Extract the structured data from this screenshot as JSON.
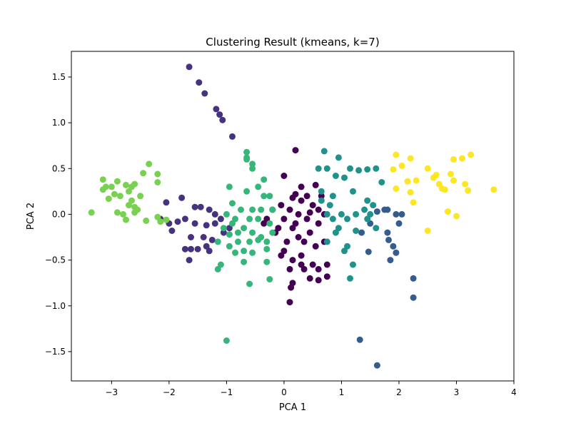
{
  "chart_data": {
    "type": "scatter",
    "title": "Clustering Result (kmeans, k=7)",
    "xlabel": "PCA 1",
    "ylabel": "PCA 2",
    "xlim": [
      -3.7,
      4.0
    ],
    "ylim": [
      -1.82,
      1.78
    ],
    "xticks": [
      -3,
      -2,
      -1,
      0,
      1,
      2,
      3,
      4
    ],
    "yticks": [
      -1.5,
      -1.0,
      -0.5,
      0.0,
      0.5,
      1.0,
      1.5
    ],
    "xtick_labels": [
      "−3",
      "−2",
      "−1",
      "0",
      "1",
      "2",
      "3",
      "4"
    ],
    "ytick_labels": [
      "−1.5",
      "−1.0",
      "−0.5",
      "0.0",
      "0.5",
      "1.0",
      "1.5"
    ],
    "grid": false,
    "legend": "none",
    "series": [
      {
        "cluster": 0,
        "color": "#440154",
        "points": [
          [
            0.2,
            0.7
          ],
          [
            0.0,
            0.42
          ],
          [
            0.3,
            0.3
          ],
          [
            0.55,
            0.32
          ],
          [
            0.4,
            0.2
          ],
          [
            0.15,
            0.18
          ],
          [
            -0.05,
            0.1
          ],
          [
            0.1,
            0.05
          ],
          [
            0.3,
            0.15
          ],
          [
            0.5,
            0.1
          ],
          [
            0.6,
            0.05
          ],
          [
            -0.2,
            0.05
          ],
          [
            -0.3,
            -0.05
          ],
          [
            0.0,
            -0.05
          ],
          [
            0.2,
            -0.1
          ],
          [
            0.4,
            -0.05
          ],
          [
            0.6,
            -0.1
          ],
          [
            0.7,
            0.0
          ],
          [
            0.45,
            -0.2
          ],
          [
            0.25,
            -0.25
          ],
          [
            0.05,
            -0.3
          ],
          [
            -0.15,
            -0.2
          ],
          [
            -0.35,
            -0.1
          ],
          [
            0.35,
            -0.3
          ],
          [
            0.55,
            -0.35
          ],
          [
            0.7,
            -0.3
          ],
          [
            0.0,
            -0.4
          ],
          [
            0.15,
            -0.5
          ],
          [
            0.3,
            -0.45
          ],
          [
            0.5,
            -0.55
          ],
          [
            0.6,
            -0.6
          ],
          [
            0.75,
            -0.55
          ],
          [
            0.35,
            -0.6
          ],
          [
            0.1,
            -0.6
          ],
          [
            0.15,
            -0.75
          ],
          [
            0.45,
            -0.7
          ],
          [
            0.75,
            -0.68
          ],
          [
            0.6,
            -0.72
          ],
          [
            0.12,
            -0.8
          ],
          [
            0.1,
            -0.96
          ],
          [
            0.25,
            0.0
          ],
          [
            -0.1,
            -0.15
          ],
          [
            0.65,
            0.2
          ],
          [
            0.2,
            0.22
          ],
          [
            0.45,
            0.02
          ],
          [
            0.15,
            -0.15
          ],
          [
            -0.05,
            -0.45
          ],
          [
            0.3,
            -0.55
          ]
        ]
      },
      {
        "cluster": 1,
        "color": "#46327e",
        "points": [
          [
            -1.65,
            1.61
          ],
          [
            -1.48,
            1.44
          ],
          [
            -1.38,
            1.32
          ],
          [
            -1.18,
            1.15
          ],
          [
            -1.12,
            1.09
          ],
          [
            -1.07,
            1.03
          ],
          [
            -0.9,
            0.85
          ],
          [
            -2.05,
            0.13
          ],
          [
            -1.78,
            0.18
          ],
          [
            -1.45,
            0.08
          ],
          [
            -1.3,
            0.05
          ],
          [
            -1.55,
            -0.1
          ],
          [
            -1.35,
            -0.12
          ],
          [
            -1.2,
            -0.1
          ],
          [
            -1.1,
            -0.05
          ],
          [
            -0.95,
            -0.15
          ],
          [
            -2.15,
            -0.05
          ],
          [
            -2.0,
            -0.1
          ],
          [
            -1.85,
            -0.08
          ],
          [
            -1.72,
            -0.05
          ],
          [
            -1.95,
            -0.18
          ],
          [
            -1.62,
            -0.25
          ],
          [
            -1.4,
            -0.25
          ],
          [
            -1.25,
            -0.28
          ],
          [
            -1.35,
            -0.35
          ],
          [
            -1.5,
            -0.38
          ],
          [
            -1.62,
            -0.38
          ],
          [
            -1.72,
            -0.38
          ],
          [
            -1.65,
            -0.5
          ],
          [
            -1.3,
            -0.4
          ],
          [
            -1.05,
            -0.2
          ],
          [
            -1.55,
            0.08
          ],
          [
            -1.2,
            0.0
          ]
        ]
      },
      {
        "cluster": 2,
        "color": "#365c8d",
        "points": [
          [
            1.35,
            -0.2
          ],
          [
            1.5,
            -0.1
          ],
          [
            1.62,
            0.03
          ],
          [
            1.75,
            0.05
          ],
          [
            1.8,
            0.05
          ],
          [
            1.95,
            0.0
          ],
          [
            2.05,
            0.0
          ],
          [
            2.0,
            -0.1
          ],
          [
            1.8,
            -0.2
          ],
          [
            1.82,
            -0.28
          ],
          [
            1.9,
            -0.35
          ],
          [
            1.95,
            -0.42
          ],
          [
            1.85,
            -0.5
          ],
          [
            1.47,
            -0.41
          ],
          [
            2.25,
            -0.7
          ],
          [
            2.25,
            -0.91
          ],
          [
            1.32,
            -1.37
          ],
          [
            1.62,
            -1.65
          ]
        ]
      },
      {
        "cluster": 3,
        "color": "#21918c",
        "points": [
          [
            0.7,
            0.69
          ],
          [
            0.95,
            0.62
          ],
          [
            1.15,
            0.5
          ],
          [
            0.75,
            0.5
          ],
          [
            0.9,
            0.42
          ],
          [
            1.05,
            0.4
          ],
          [
            1.3,
            0.48
          ],
          [
            1.45,
            0.49
          ],
          [
            1.6,
            0.5
          ],
          [
            1.7,
            0.35
          ],
          [
            1.2,
            0.25
          ],
          [
            0.85,
            0.2
          ],
          [
            0.65,
            0.15
          ],
          [
            0.75,
            0.0
          ],
          [
            0.85,
            -0.05
          ],
          [
            1.0,
            0.0
          ],
          [
            1.1,
            -0.05
          ],
          [
            1.25,
            0.0
          ],
          [
            1.4,
            0.05
          ],
          [
            1.55,
            0.1
          ],
          [
            1.5,
            0.0
          ],
          [
            1.45,
            -0.05
          ],
          [
            1.6,
            -0.15
          ],
          [
            1.25,
            -0.18
          ],
          [
            0.95,
            -0.15
          ],
          [
            0.75,
            -0.3
          ],
          [
            1.05,
            -0.4
          ],
          [
            0.9,
            -0.2
          ],
          [
            1.1,
            -0.35
          ],
          [
            1.2,
            -0.55
          ],
          [
            1.15,
            -0.7
          ],
          [
            1.45,
            0.15
          ],
          [
            0.6,
            0.5
          ],
          [
            0.65,
            0.25
          ],
          [
            0.8,
            0.1
          ]
        ]
      },
      {
        "cluster": 4,
        "color": "#35b779",
        "points": [
          [
            -0.65,
            0.68
          ],
          [
            -0.55,
            0.55
          ],
          [
            -0.35,
            0.38
          ],
          [
            -0.65,
            0.62
          ],
          [
            -0.55,
            0.5
          ],
          [
            -0.95,
            0.3
          ],
          [
            -0.65,
            0.25
          ],
          [
            -0.45,
            0.3
          ],
          [
            -0.35,
            0.2
          ],
          [
            -0.25,
            0.2
          ],
          [
            -0.9,
            0.12
          ],
          [
            -0.75,
            0.05
          ],
          [
            -0.55,
            0.05
          ],
          [
            -0.4,
            0.05
          ],
          [
            -0.2,
            0.05
          ],
          [
            -1.0,
            0.0
          ],
          [
            -0.85,
            -0.05
          ],
          [
            -0.6,
            -0.05
          ],
          [
            -0.45,
            -0.05
          ],
          [
            -0.25,
            -0.1
          ],
          [
            -1.05,
            -0.15
          ],
          [
            -0.95,
            -0.22
          ],
          [
            -0.8,
            -0.2
          ],
          [
            -0.7,
            -0.15
          ],
          [
            -0.55,
            -0.2
          ],
          [
            -0.4,
            -0.25
          ],
          [
            -0.2,
            -0.2
          ],
          [
            -1.15,
            -0.3
          ],
          [
            -0.95,
            -0.35
          ],
          [
            -0.8,
            -0.3
          ],
          [
            -0.6,
            -0.3
          ],
          [
            -0.45,
            -0.28
          ],
          [
            -0.3,
            -0.3
          ],
          [
            -0.7,
            -0.4
          ],
          [
            -0.85,
            -0.42
          ],
          [
            -0.55,
            -0.42
          ],
          [
            -0.3,
            -0.38
          ],
          [
            -1.1,
            -0.55
          ],
          [
            -1.15,
            -0.6
          ],
          [
            -0.7,
            -0.52
          ],
          [
            -0.3,
            -0.52
          ],
          [
            -0.6,
            -0.76
          ],
          [
            -0.25,
            -0.71
          ],
          [
            -1.0,
            -1.38
          ],
          [
            -0.65,
            0.6
          ],
          [
            -0.9,
            -0.1
          ]
        ]
      },
      {
        "cluster": 5,
        "color": "#7ad151",
        "points": [
          [
            -3.35,
            0.02
          ],
          [
            -3.15,
            0.38
          ],
          [
            -3.0,
            0.3
          ],
          [
            -2.9,
            0.36
          ],
          [
            -2.75,
            0.32
          ],
          [
            -2.65,
            0.3
          ],
          [
            -2.6,
            0.33
          ],
          [
            -3.1,
            0.3
          ],
          [
            -3.15,
            0.27
          ],
          [
            -2.95,
            0.22
          ],
          [
            -3.05,
            0.17
          ],
          [
            -2.85,
            0.2
          ],
          [
            -2.7,
            0.25
          ],
          [
            -2.65,
            0.15
          ],
          [
            -2.5,
            0.2
          ],
          [
            -2.6,
            0.08
          ],
          [
            -2.7,
            0.1
          ],
          [
            -2.2,
            0.44
          ],
          [
            -2.35,
            0.55
          ],
          [
            -2.45,
            0.45
          ],
          [
            -2.2,
            0.35
          ],
          [
            -2.9,
            0.02
          ],
          [
            -2.6,
            0.02
          ],
          [
            -2.55,
            0.05
          ],
          [
            -2.4,
            -0.07
          ],
          [
            -2.2,
            -0.03
          ],
          [
            -2.15,
            -0.08
          ],
          [
            -2.75,
            -0.06
          ],
          [
            -2.05,
            -0.06
          ],
          [
            -2.8,
            0.0
          ]
        ]
      },
      {
        "cluster": 6,
        "color": "#fde725",
        "points": [
          [
            1.95,
            0.65
          ],
          [
            2.2,
            0.61
          ],
          [
            1.9,
            0.49
          ],
          [
            2.05,
            0.53
          ],
          [
            2.3,
            0.37
          ],
          [
            2.5,
            0.5
          ],
          [
            2.6,
            0.4
          ],
          [
            2.65,
            0.43
          ],
          [
            2.7,
            0.33
          ],
          [
            2.8,
            0.27
          ],
          [
            2.75,
            0.28
          ],
          [
            2.95,
            0.6
          ],
          [
            3.1,
            0.61
          ],
          [
            3.25,
            0.65
          ],
          [
            2.9,
            0.44
          ],
          [
            2.95,
            0.37
          ],
          [
            3.15,
            0.33
          ],
          [
            3.2,
            0.26
          ],
          [
            3.65,
            0.27
          ],
          [
            2.15,
            0.36
          ],
          [
            2.2,
            0.24
          ],
          [
            2.25,
            0.13
          ],
          [
            1.95,
            0.28
          ],
          [
            2.85,
            0.03
          ],
          [
            3.0,
            -0.02
          ],
          [
            2.5,
            -0.18
          ]
        ]
      }
    ]
  }
}
